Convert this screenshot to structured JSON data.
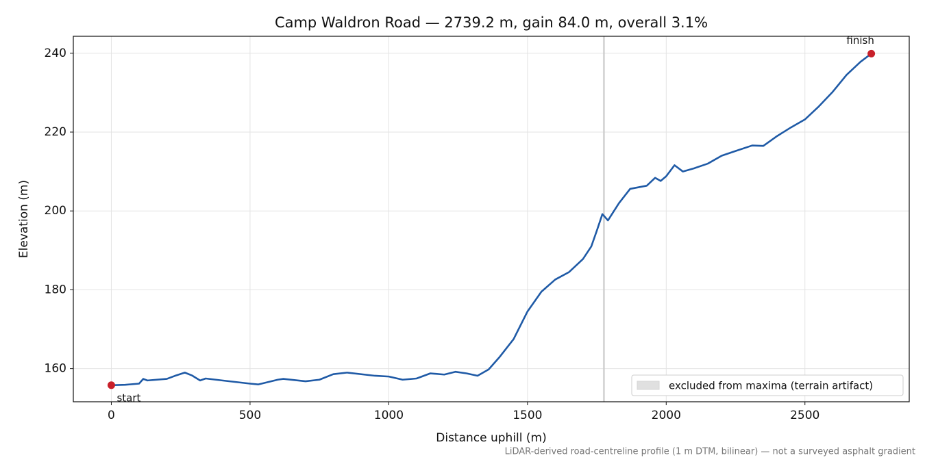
{
  "chart_data": {
    "type": "line",
    "title": "Camp Waldron Road — 2739.2 m, gain 84.0 m, overall 3.1%",
    "x_label": "Distance uphill (m)",
    "y_label": "Elevation (m)",
    "footnote": "LiDAR-derived road-centreline profile (1 m DTM, bilinear) — not a surveyed asphalt gradient",
    "x": [
      0,
      50,
      100,
      115,
      130,
      200,
      230,
      265,
      290,
      320,
      340,
      400,
      500,
      530,
      600,
      620,
      700,
      750,
      800,
      850,
      950,
      1000,
      1050,
      1100,
      1150,
      1200,
      1240,
      1280,
      1320,
      1360,
      1400,
      1450,
      1500,
      1550,
      1600,
      1650,
      1700,
      1730,
      1750,
      1770,
      1790,
      1830,
      1870,
      1930,
      1960,
      1980,
      2000,
      2030,
      2060,
      2100,
      2150,
      2200,
      2250,
      2310,
      2350,
      2400,
      2450,
      2500,
      2550,
      2600,
      2650,
      2700,
      2739.2
    ],
    "series": [
      {
        "color": "#1f5aa6",
        "values": [
          155.8,
          155.9,
          156.2,
          157.4,
          157.0,
          157.4,
          158.2,
          159.0,
          158.3,
          157.0,
          157.5,
          157.0,
          156.2,
          156.0,
          157.2,
          157.4,
          156.8,
          157.2,
          158.6,
          159.0,
          158.2,
          158.0,
          157.2,
          157.5,
          158.8,
          158.5,
          159.2,
          158.8,
          158.2,
          159.8,
          163.0,
          167.5,
          174.5,
          179.5,
          182.6,
          184.5,
          187.8,
          191.0,
          195.0,
          199.2,
          197.6,
          202.0,
          205.6,
          206.4,
          208.4,
          207.6,
          208.8,
          211.6,
          210.0,
          210.8,
          212.0,
          214.0,
          215.2,
          216.6,
          216.5,
          219.0,
          221.2,
          223.2,
          226.5,
          230.2,
          234.5,
          237.8,
          239.9
        ]
      }
    ],
    "annotations": [
      {
        "text": "start",
        "x": 0,
        "y": 155.8,
        "color": "#c8202a"
      },
      {
        "text": "finish",
        "x": 2739.2,
        "y": 239.9,
        "color": "#c8202a"
      }
    ],
    "band": {
      "label": "excluded from maxima (terrain artifact)",
      "x": [
        1772,
        1779
      ],
      "color": "#cccccc"
    },
    "xlim": [
      -137,
      2876
    ],
    "ylim": [
      151.6,
      244.3
    ],
    "xticks": [
      0,
      500,
      1000,
      1500,
      2000,
      2500
    ],
    "yticks": [
      160,
      180,
      200,
      220,
      240
    ],
    "grid": true,
    "legend_position": "lower right"
  }
}
